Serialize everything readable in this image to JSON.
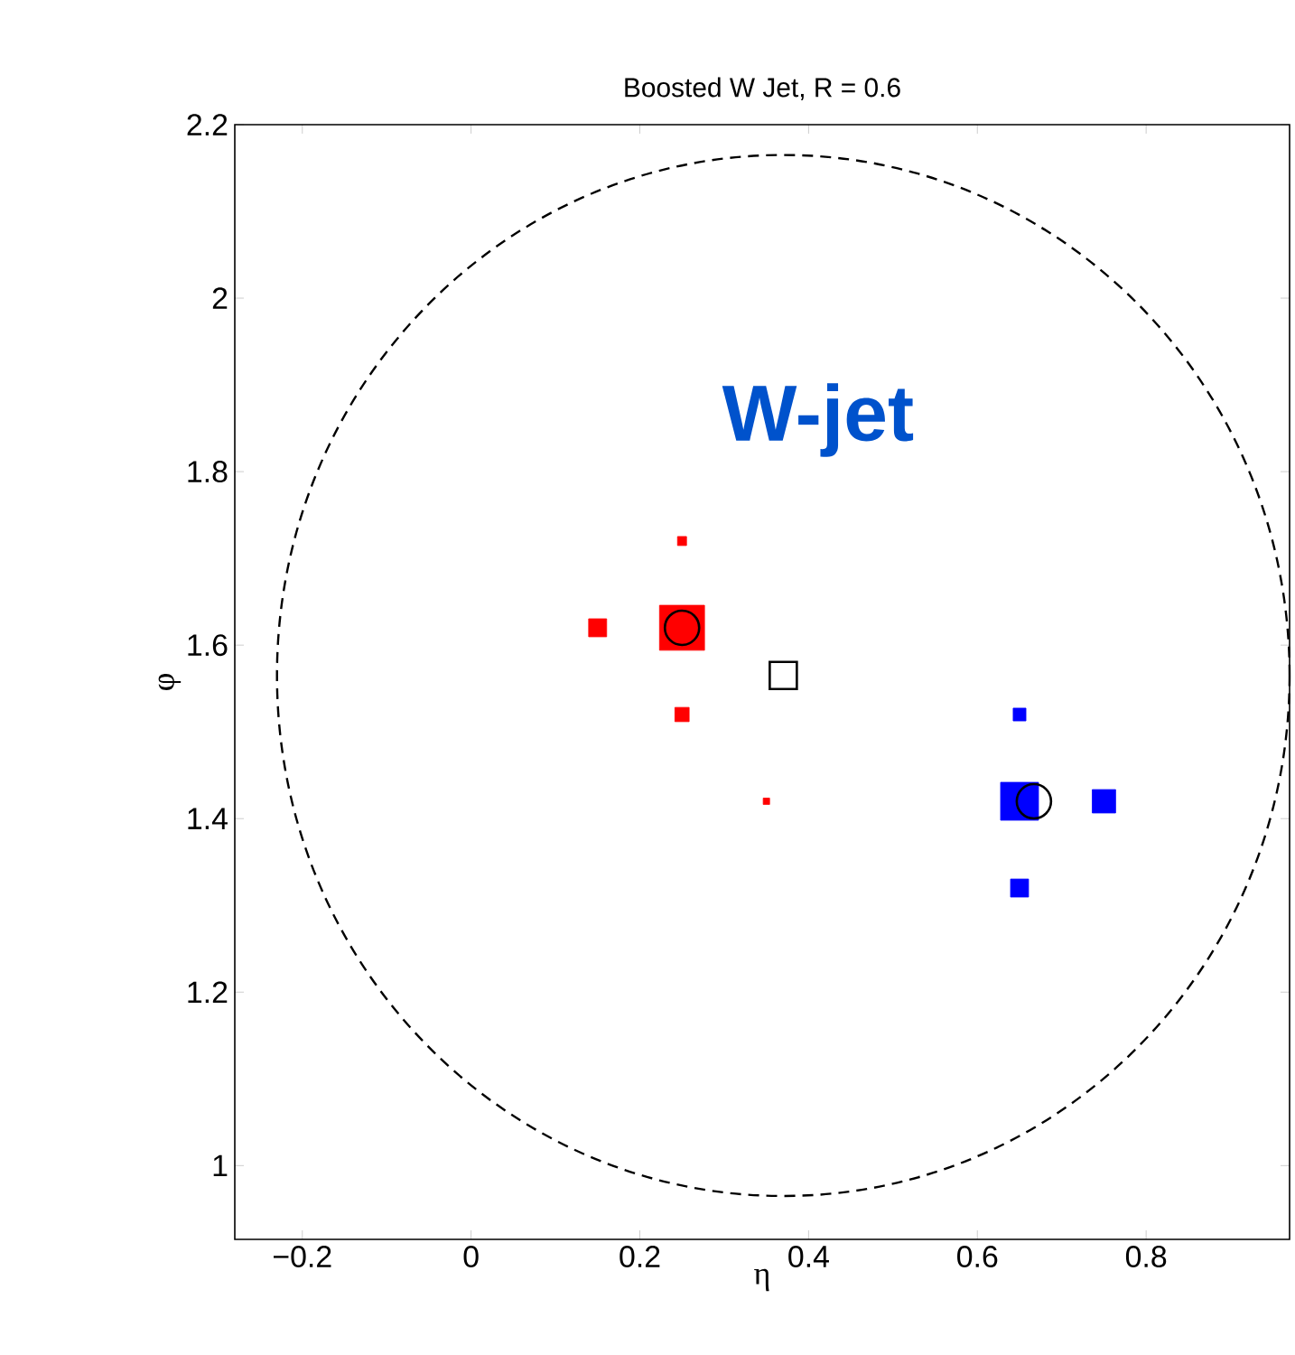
{
  "chart_data": {
    "type": "bubble",
    "title": "Boosted W Jet, R = 0.6",
    "xlabel": "η",
    "ylabel": "φ",
    "annotations": [
      "W-jet"
    ],
    "xlim": [
      -0.28,
      0.97
    ],
    "ylim": [
      0.915,
      2.2
    ],
    "xticks": [
      {
        "value": -0.2,
        "label": "−0.2"
      },
      0,
      0.2,
      0.4,
      0.6,
      0.8
    ],
    "yticks": [
      1,
      1.2,
      1.4,
      1.6,
      1.8,
      2,
      2.2
    ],
    "series": [
      {
        "type": "bubble",
        "color": "#ff0000",
        "marker": "square",
        "x": [
          0.25,
          0.15,
          0.25,
          0.25,
          0.35
        ],
        "values": [
          1.72,
          1.62,
          1.62,
          1.52,
          1.42
        ],
        "sizes": [
          0.04,
          0.16,
          1,
          0.1,
          0.02
        ]
      },
      {
        "type": "bubble",
        "color": "#0000ff",
        "marker": "square",
        "x": [
          0.65,
          0.65,
          0.75,
          0.65
        ],
        "values": [
          1.52,
          1.42,
          1.42,
          1.32
        ],
        "sizes": [
          0.08,
          0.71,
          0.27,
          0.16
        ]
      },
      {
        "type": "scatter",
        "color": "#000000",
        "marker": "circle",
        "x": [
          0.25,
          0.667
        ],
        "values": [
          1.62,
          1.42
        ]
      },
      {
        "type": "scatter",
        "color": "#000000",
        "marker": "square",
        "x": [
          0.37
        ],
        "values": [
          1.565
        ]
      }
    ]
  }
}
